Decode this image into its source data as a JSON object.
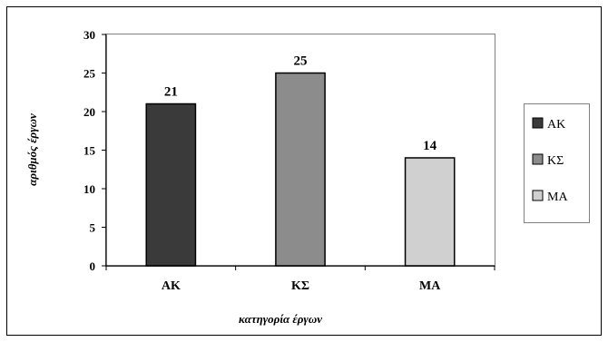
{
  "chart_data": {
    "type": "bar",
    "categories": [
      "ΑΚ",
      "ΚΣ",
      "ΜΑ"
    ],
    "values": [
      21,
      25,
      14
    ],
    "data_labels": [
      "21",
      "25",
      "14"
    ],
    "colors": [
      "#3a3a3a",
      "#8c8c8c",
      "#d0d0d0"
    ],
    "xlabel": "κατηγορία έργων",
    "ylabel": "αριθμός έργων",
    "ylim": [
      0,
      30
    ],
    "yticks": [
      0,
      5,
      10,
      15,
      20,
      25,
      30
    ],
    "ytick_labels": [
      "0",
      "5",
      "10",
      "15",
      "20",
      "25",
      "30"
    ],
    "grid": false,
    "legend": {
      "placement": "right",
      "entries": [
        "ΑΚ",
        "ΚΣ",
        "ΜΑ"
      ]
    }
  }
}
